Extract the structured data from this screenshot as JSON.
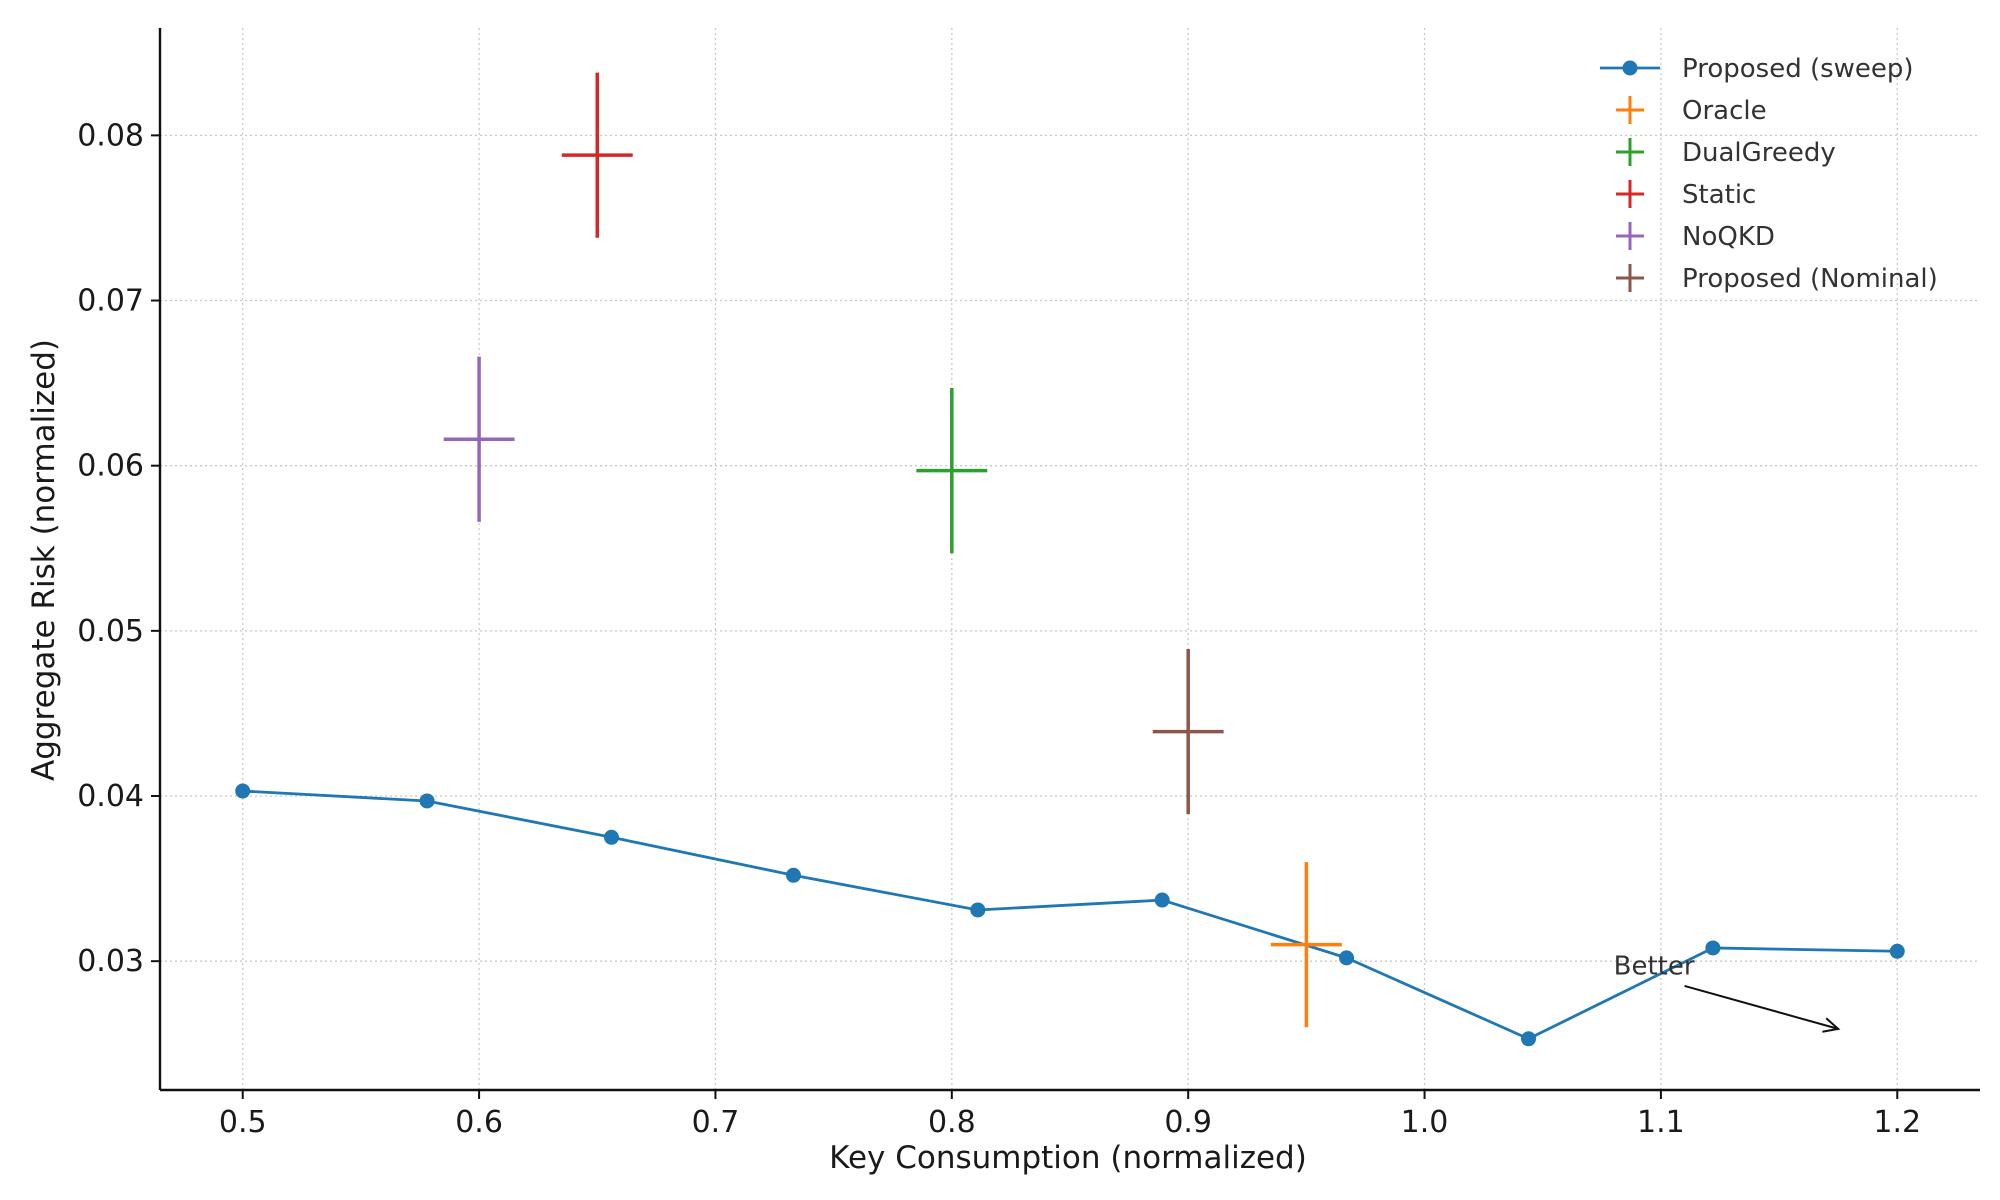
{
  "chart_data": {
    "type": "scatter",
    "title": "",
    "xlabel": "Key Consumption (normalized)",
    "ylabel": "Aggregate Risk (normalized)",
    "xlim": [
      0.465,
      1.235
    ],
    "ylim": [
      0.0222,
      0.0865
    ],
    "xticks": [
      0.5,
      0.6,
      0.7,
      0.8,
      0.9,
      1.0,
      1.1,
      1.2
    ],
    "xtick_labels": [
      "0.5",
      "0.6",
      "0.7",
      "0.8",
      "0.9",
      "1.0",
      "1.1",
      "1.2"
    ],
    "yticks": [
      0.03,
      0.04,
      0.05,
      0.06,
      0.07,
      0.08
    ],
    "ytick_labels": [
      "0.03",
      "0.04",
      "0.05",
      "0.06",
      "0.07",
      "0.08"
    ],
    "grid": true,
    "legend_position": "top-right",
    "line_series": {
      "name": "Proposed (sweep)",
      "color": "#1f77b4",
      "x": [
        0.5,
        0.578,
        0.656,
        0.733,
        0.811,
        0.889,
        0.967,
        1.044,
        1.122,
        1.2
      ],
      "y": [
        0.0403,
        0.0397,
        0.0375,
        0.0352,
        0.0331,
        0.0337,
        0.0302,
        0.0253,
        0.0308,
        0.0306
      ]
    },
    "errorbar_series": [
      {
        "name": "Oracle",
        "color": "#ff7f0e",
        "x": 0.95,
        "y": 0.031,
        "xerr": 0.015,
        "yerr": 0.005
      },
      {
        "name": "DualGreedy",
        "color": "#2ca02c",
        "x": 0.8,
        "y": 0.0597,
        "xerr": 0.015,
        "yerr": 0.005
      },
      {
        "name": "Static",
        "color": "#d62728",
        "x": 0.65,
        "y": 0.0788,
        "xerr": 0.015,
        "yerr": 0.005
      },
      {
        "name": "NoQKD",
        "color": "#9467bd",
        "x": 0.6,
        "y": 0.0616,
        "xerr": 0.015,
        "yerr": 0.005
      },
      {
        "name": "Proposed (Nominal)",
        "color": "#8c564b",
        "x": 0.9,
        "y": 0.0439,
        "xerr": 0.015,
        "yerr": 0.005
      }
    ],
    "annotation": {
      "text": "Better",
      "text_x": 1.08,
      "text_y": 0.0292,
      "arrow_from": [
        1.11,
        0.0285
      ],
      "arrow_to": [
        1.175,
        0.0259
      ]
    }
  }
}
